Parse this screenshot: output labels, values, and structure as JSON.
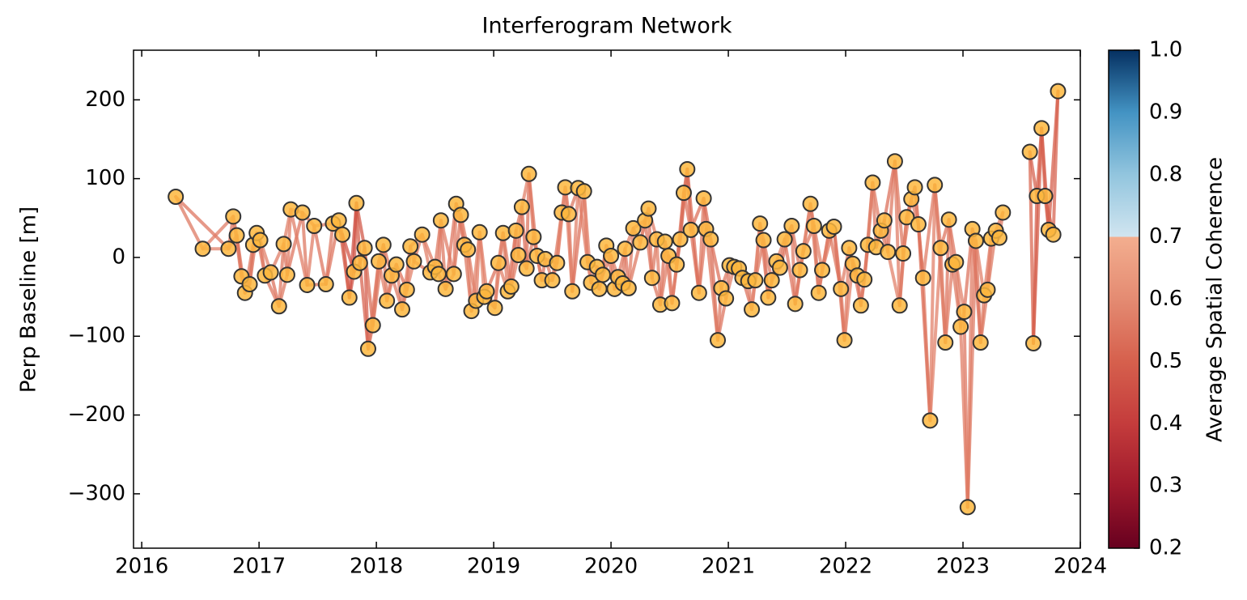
{
  "chart_data": {
    "type": "network",
    "title": "Interferogram Network",
    "y_label": "Perp Baseline [m]",
    "colorbar_label": "Average Spatial Coherence",
    "xlim": [
      2015.93,
      2024.0
    ],
    "xticks": [
      2016,
      2017,
      2018,
      2019,
      2020,
      2021,
      2022,
      2023,
      2024
    ],
    "ylim": [
      -369,
      263
    ],
    "yticks": [
      {
        "value": -300,
        "label": "−300"
      },
      {
        "value": -200,
        "label": "−200"
      },
      {
        "value": -100,
        "label": "−100"
      },
      0,
      100,
      200
    ],
    "clim": [
      0.2,
      1.0
    ],
    "cticks": [
      0.2,
      0.3,
      0.4,
      0.5,
      0.6,
      0.7,
      0.8,
      0.9,
      {
        "value": 1.0,
        "label": "1.0"
      }
    ],
    "colormap": [
      {
        "value": 0.2,
        "color": "#67001f"
      },
      {
        "value": 0.3,
        "color": "#a01a2c"
      },
      {
        "value": 0.4,
        "color": "#c43c3c"
      },
      {
        "value": 0.5,
        "color": "#d6604d"
      },
      {
        "value": 0.6,
        "color": "#e48b72"
      },
      {
        "value": 0.7,
        "color": "#f3ae8f"
      },
      {
        "value": 0.7,
        "color": "#d1e5f0"
      },
      {
        "value": 0.8,
        "color": "#92c5de"
      },
      {
        "value": 0.9,
        "color": "#4393c3"
      },
      {
        "value": 1.0,
        "color": "#053061"
      }
    ],
    "point_color": "#fdb73e",
    "x": [
      2016.29,
      2016.52,
      2016.74,
      2016.78,
      2016.81,
      2016.85,
      2016.88,
      2016.92,
      2016.95,
      2016.98,
      2017.01,
      2017.05,
      2017.1,
      2017.17,
      2017.21,
      2017.24,
      2017.27,
      2017.37,
      2017.41,
      2017.47,
      2017.57,
      2017.63,
      2017.68,
      2017.71,
      2017.77,
      2017.81,
      2017.83,
      2017.86,
      2017.9,
      2017.93,
      2017.97,
      2018.02,
      2018.06,
      2018.09,
      2018.13,
      2018.17,
      2018.22,
      2018.26,
      2018.29,
      2018.32,
      2018.39,
      2018.46,
      2018.5,
      2018.53,
      2018.55,
      2018.59,
      2018.66,
      2018.68,
      2018.72,
      2018.75,
      2018.78,
      2018.81,
      2018.85,
      2018.88,
      2018.92,
      2018.94,
      2019.01,
      2019.04,
      2019.08,
      2019.12,
      2019.15,
      2019.19,
      2019.21,
      2019.24,
      2019.28,
      2019.3,
      2019.34,
      2019.37,
      2019.41,
      2019.44,
      2019.5,
      2019.54,
      2019.58,
      2019.61,
      2019.64,
      2019.67,
      2019.72,
      2019.77,
      2019.8,
      2019.83,
      2019.88,
      2019.9,
      2019.93,
      2019.96,
      2020.0,
      2020.03,
      2020.06,
      2020.1,
      2020.12,
      2020.15,
      2020.19,
      2020.25,
      2020.29,
      2020.32,
      2020.35,
      2020.39,
      2020.42,
      2020.46,
      2020.49,
      2020.52,
      2020.56,
      2020.59,
      2020.62,
      2020.65,
      2020.68,
      2020.75,
      2020.79,
      2020.81,
      2020.85,
      2020.91,
      2020.94,
      2020.98,
      2021.01,
      2021.05,
      2021.09,
      2021.12,
      2021.17,
      2021.2,
      2021.23,
      2021.27,
      2021.3,
      2021.34,
      2021.37,
      2021.41,
      2021.44,
      2021.48,
      2021.54,
      2021.57,
      2021.61,
      2021.64,
      2021.7,
      2021.73,
      2021.77,
      2021.8,
      2021.86,
      2021.9,
      2021.96,
      2021.99,
      2022.03,
      2022.06,
      2022.1,
      2022.13,
      2022.16,
      2022.19,
      2022.23,
      2022.26,
      2022.3,
      2022.33,
      2022.36,
      2022.42,
      2022.46,
      2022.49,
      2022.52,
      2022.56,
      2022.59,
      2022.62,
      2022.66,
      2022.72,
      2022.76,
      2022.81,
      2022.85,
      2022.88,
      2022.91,
      2022.94,
      2022.98,
      2023.01,
      2023.04,
      2023.08,
      2023.11,
      2023.15,
      2023.18,
      2023.21,
      2023.24,
      2023.28,
      2023.31,
      2023.34,
      2023.57,
      2023.6,
      2023.63,
      2023.67,
      2023.7,
      2023.73,
      2023.77,
      2023.81
    ],
    "values": [
      77,
      11,
      11,
      52,
      28,
      -24,
      -45,
      -34,
      16,
      31,
      22,
      -23,
      -19,
      -62,
      17,
      -22,
      61,
      57,
      -35,
      40,
      -34,
      43,
      47,
      29,
      -51,
      -18,
      69,
      -7,
      12,
      -116,
      -86,
      -5,
      16,
      -55,
      -23,
      -9,
      -66,
      -41,
      14,
      -5,
      29,
      -19,
      -12,
      -21,
      47,
      -40,
      -21,
      68,
      54,
      16,
      10,
      -68,
      -55,
      32,
      -50,
      -43,
      -64,
      -7,
      31,
      -43,
      -37,
      34,
      3,
      64,
      -14,
      106,
      26,
      2,
      -29,
      -2,
      -29,
      -7,
      57,
      89,
      55,
      -43,
      88,
      84,
      -6,
      -32,
      -12,
      -40,
      -22,
      15,
      2,
      -40,
      -25,
      -33,
      11,
      -39,
      37,
      19,
      47,
      62,
      -26,
      23,
      -60,
      20,
      2,
      -58,
      -9,
      23,
      82,
      112,
      35,
      -45,
      75,
      36,
      23,
      -105,
      -39,
      -52,
      -10,
      -12,
      -14,
      -26,
      -30,
      -66,
      -29,
      43,
      22,
      -51,
      -29,
      -5,
      -13,
      23,
      40,
      -59,
      -16,
      8,
      68,
      40,
      -45,
      -16,
      34,
      39,
      -40,
      -105,
      12,
      -8,
      -23,
      -61,
      -28,
      16,
      95,
      13,
      34,
      47,
      7,
      122,
      -61,
      5,
      51,
      74,
      89,
      42,
      -26,
      -207,
      92,
      12,
      -108,
      48,
      -9,
      -6,
      -88,
      -69,
      -317,
      36,
      21,
      -108,
      -48,
      -41,
      24,
      34,
      25,
      57,
      134,
      -109,
      78,
      164,
      78,
      35,
      29,
      211
    ],
    "interferograms": [
      {
        "lag": 1,
        "coherence": [
          0.56,
          0.58,
          0.55,
          0.57,
          0.54,
          0.56,
          0.55,
          0.57,
          0.58,
          0.56,
          0.55,
          0.57,
          0.54,
          0.56,
          0.55,
          0.57,
          0.58,
          0.56,
          0.57,
          0.55,
          0.56,
          0.54,
          0.52,
          0.5,
          0.47,
          0.48,
          0.5,
          0.52,
          0.49,
          0.53,
          0.55,
          0.57,
          0.56,
          0.55,
          0.57,
          0.58,
          0.56,
          0.55,
          0.57,
          0.56,
          0.58,
          0.56,
          0.57,
          0.55,
          0.56,
          0.58,
          0.57,
          0.56,
          0.55,
          0.57,
          0.58,
          0.56,
          0.57,
          0.59,
          0.56,
          0.57,
          0.58,
          0.56,
          0.57,
          0.58,
          0.55,
          0.57,
          0.56,
          0.54,
          0.55,
          0.57,
          0.58,
          0.56,
          0.55,
          0.57,
          0.56,
          0.58,
          0.57,
          0.55,
          0.56,
          0.58,
          0.57,
          0.56,
          0.55,
          0.57,
          0.58,
          0.56,
          0.57,
          0.55,
          0.56,
          0.58,
          0.57,
          0.56,
          0.55,
          0.57,
          0.56,
          0.58,
          0.57,
          0.55,
          0.56,
          0.58,
          0.54,
          0.56,
          0.55,
          0.57,
          0.56,
          0.55,
          0.52,
          0.53,
          0.55,
          0.56,
          0.54,
          0.55,
          0.53,
          0.56,
          0.57,
          0.56,
          0.58,
          0.57,
          0.56,
          0.55,
          0.57,
          0.58,
          0.56,
          0.57,
          0.55,
          0.56,
          0.58,
          0.57,
          0.56,
          0.55,
          0.57,
          0.58,
          0.56,
          0.57,
          0.55,
          0.56,
          0.58,
          0.57,
          0.56,
          0.55,
          0.57,
          0.58,
          0.56,
          0.57,
          0.55,
          0.56,
          0.58,
          0.57,
          0.56,
          0.55,
          0.57,
          0.58,
          0.56,
          0.57,
          0.55,
          0.56,
          0.58,
          0.57,
          0.56,
          0.55,
          0.57,
          0.58,
          0.56,
          0.57,
          0.55,
          0.56,
          0.58,
          0.57,
          0.56,
          0.55,
          0.57,
          0.58,
          0.56,
          0.57,
          0.55,
          0.56,
          0.58,
          0.57,
          0.56,
          null,
          0.52,
          0.5,
          0.51,
          0.53,
          0.52,
          0.5,
          0.51
        ]
      },
      {
        "lag": 2,
        "coherence": [
          0.55,
          0.57,
          0.56,
          0.58,
          0.55,
          0.57,
          0.56,
          0.54,
          0.57,
          0.56,
          0.58,
          0.55,
          0.57,
          0.56,
          0.58,
          0.55,
          0.57,
          0.56,
          0.54,
          0.57,
          0.55,
          0.53,
          0.5,
          0.47,
          0.46,
          0.49,
          0.48,
          0.51,
          0.53,
          0.55,
          0.56,
          0.58,
          0.55,
          0.57,
          0.56,
          0.54,
          0.57,
          0.58,
          0.56,
          0.55,
          0.57,
          0.55,
          0.56,
          0.58,
          0.57,
          0.55,
          0.56,
          0.54,
          0.58,
          0.56,
          0.56,
          0.58,
          0.55,
          0.57,
          0.56,
          0.54,
          0.57,
          0.58,
          0.56,
          0.55,
          0.57,
          0.55,
          0.56,
          0.58,
          0.57,
          0.55,
          0.56,
          0.54,
          0.58,
          0.56,
          0.56,
          0.58,
          0.55,
          0.57,
          0.56,
          0.54,
          0.57,
          0.58,
          0.56,
          0.55,
          0.57,
          0.55,
          0.56,
          0.58,
          0.57,
          0.55,
          0.56,
          0.54,
          0.58,
          0.56,
          0.56,
          0.58,
          0.55,
          0.57,
          0.56,
          0.54,
          0.57,
          0.58,
          0.56,
          0.55,
          0.54,
          0.53,
          0.55,
          0.52,
          0.54,
          0.55,
          0.53,
          0.56,
          0.54,
          0.55,
          0.56,
          0.58,
          0.55,
          0.57,
          0.56,
          0.54,
          0.57,
          0.58,
          0.56,
          0.55,
          0.57,
          0.55,
          0.56,
          0.58,
          0.57,
          0.55,
          0.56,
          0.54,
          0.58,
          0.56,
          0.56,
          0.58,
          0.55,
          0.57,
          0.56,
          0.54,
          0.57,
          0.58,
          0.56,
          0.55,
          0.57,
          0.55,
          0.56,
          0.58,
          0.57,
          0.55,
          0.56,
          0.54,
          0.58,
          0.56,
          0.56,
          0.58,
          0.55,
          0.57,
          0.56,
          0.54,
          0.57,
          0.58,
          0.56,
          0.55,
          0.57,
          0.55,
          0.56,
          0.58,
          0.57,
          0.55,
          0.56,
          0.54,
          0.58,
          0.56,
          0.57,
          0.56,
          0.58,
          0.57,
          null,
          null,
          0.51,
          0.5,
          0.52,
          0.49,
          0.51,
          0.5
        ]
      }
    ]
  }
}
